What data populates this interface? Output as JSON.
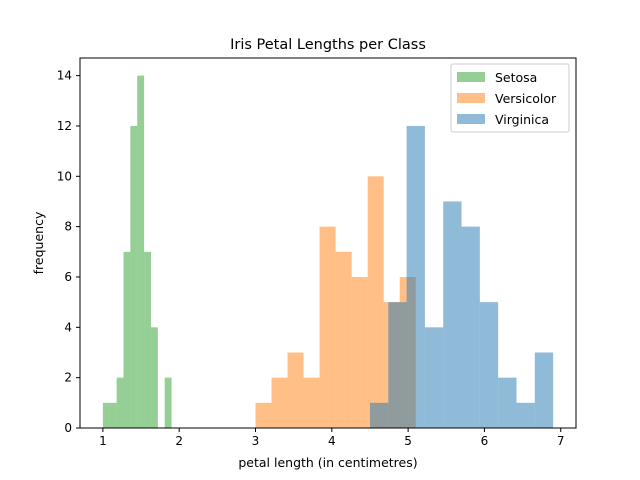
{
  "chart_data": {
    "type": "histogram",
    "title": "Iris Petal Lengths per Class",
    "xlabel": "petal length (in centimetres)",
    "ylabel": "frequency",
    "xlim": [
      0.7,
      7.2
    ],
    "ylim": [
      0,
      14.7
    ],
    "x_ticks": [
      1,
      2,
      3,
      4,
      5,
      6,
      7
    ],
    "y_ticks": [
      0,
      2,
      4,
      6,
      8,
      10,
      12,
      14
    ],
    "grid": false,
    "legend_position": "top-right",
    "series": [
      {
        "name": "Setosa",
        "color": "#2ca02c",
        "opacity": 0.5,
        "bins": [
          {
            "x0": 1.0,
            "x1": 1.09,
            "count": 1
          },
          {
            "x0": 1.09,
            "x1": 1.18,
            "count": 1
          },
          {
            "x0": 1.18,
            "x1": 1.27,
            "count": 2
          },
          {
            "x0": 1.27,
            "x1": 1.36,
            "count": 7
          },
          {
            "x0": 1.36,
            "x1": 1.45,
            "count": 12
          },
          {
            "x0": 1.45,
            "x1": 1.54,
            "count": 14
          },
          {
            "x0": 1.54,
            "x1": 1.63,
            "count": 7
          },
          {
            "x0": 1.63,
            "x1": 1.72,
            "count": 4
          },
          {
            "x0": 1.72,
            "x1": 1.81,
            "count": 0
          },
          {
            "x0": 1.81,
            "x1": 1.9,
            "count": 2
          }
        ]
      },
      {
        "name": "Versicolor",
        "color": "#ff7f0e",
        "opacity": 0.5,
        "bins": [
          {
            "x0": 3.0,
            "x1": 3.21,
            "count": 1
          },
          {
            "x0": 3.21,
            "x1": 3.42,
            "count": 2
          },
          {
            "x0": 3.42,
            "x1": 3.63,
            "count": 3
          },
          {
            "x0": 3.63,
            "x1": 3.84,
            "count": 2
          },
          {
            "x0": 3.84,
            "x1": 4.05,
            "count": 8
          },
          {
            "x0": 4.05,
            "x1": 4.26,
            "count": 7
          },
          {
            "x0": 4.26,
            "x1": 4.47,
            "count": 6
          },
          {
            "x0": 4.47,
            "x1": 4.68,
            "count": 10
          },
          {
            "x0": 4.68,
            "x1": 4.89,
            "count": 5
          },
          {
            "x0": 4.89,
            "x1": 5.1,
            "count": 6
          }
        ]
      },
      {
        "name": "Virginica",
        "color": "#1f77b4",
        "opacity": 0.5,
        "bins": [
          {
            "x0": 4.5,
            "x1": 4.74,
            "count": 1
          },
          {
            "x0": 4.74,
            "x1": 4.98,
            "count": 5
          },
          {
            "x0": 4.98,
            "x1": 5.22,
            "count": 12
          },
          {
            "x0": 5.22,
            "x1": 5.46,
            "count": 4
          },
          {
            "x0": 5.46,
            "x1": 5.7,
            "count": 9
          },
          {
            "x0": 5.7,
            "x1": 5.94,
            "count": 8
          },
          {
            "x0": 5.94,
            "x1": 6.18,
            "count": 5
          },
          {
            "x0": 6.18,
            "x1": 6.42,
            "count": 2
          },
          {
            "x0": 6.42,
            "x1": 6.66,
            "count": 1
          },
          {
            "x0": 6.66,
            "x1": 6.9,
            "count": 3
          }
        ]
      }
    ]
  }
}
